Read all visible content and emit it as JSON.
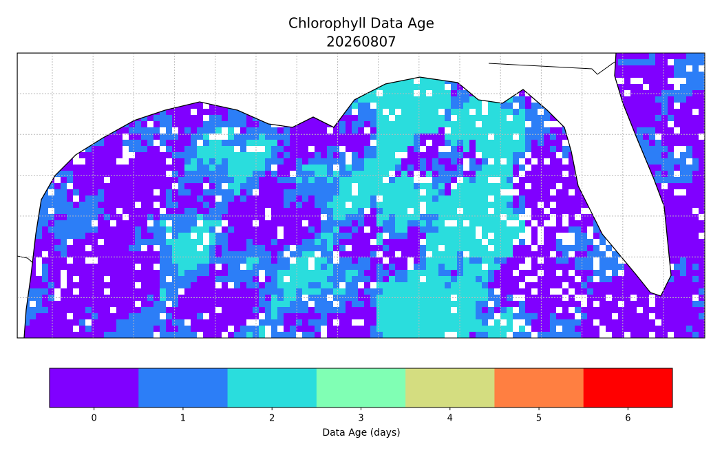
{
  "title": "Chlorophyll Data Age",
  "subtitle": "20260807",
  "colorbar": {
    "label": "Data Age (days)",
    "ticks": [
      0,
      1,
      2,
      3,
      4,
      5,
      6
    ],
    "colors": [
      "#8000ff",
      "#2c7ef7",
      "#2adddd",
      "#80ffb4",
      "#d4dd80",
      "#ff7f41",
      "#ff0000"
    ]
  }
}
